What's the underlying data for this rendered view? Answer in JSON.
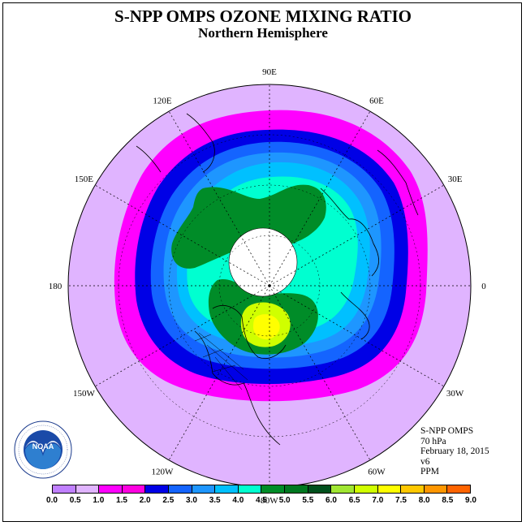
{
  "title": "S-NPP OMPS OZONE MIXING RATIO",
  "subtitle": "Northern Hemisphere",
  "longitude_labels": [
    {
      "text": "90E",
      "lon": 90
    },
    {
      "text": "60E",
      "lon": 60
    },
    {
      "text": "30E",
      "lon": 30
    },
    {
      "text": "0",
      "lon": 0
    },
    {
      "text": "30W",
      "lon": -30
    },
    {
      "text": "60W",
      "lon": -60
    },
    {
      "text": "90W",
      "lon": -90
    },
    {
      "text": "120W",
      "lon": -120
    },
    {
      "text": "150W",
      "lon": -150
    },
    {
      "text": "180",
      "lon": 180
    },
    {
      "text": "150E",
      "lon": 150
    },
    {
      "text": "120E",
      "lon": 120
    }
  ],
  "info": {
    "instrument": "S-NPP OMPS",
    "level": "70 hPa",
    "date": "February 18, 2015",
    "version": "v6",
    "units": "PPM"
  },
  "colorbar": {
    "ticks": [
      "0.0",
      "0.5",
      "1.0",
      "1.5",
      "2.0",
      "2.5",
      "3.0",
      "3.5",
      "4.0",
      "4.5",
      "5.0",
      "5.5",
      "6.0",
      "6.5",
      "7.0",
      "7.5",
      "8.0",
      "8.5",
      "9.0"
    ],
    "colors": [
      "#c080ff",
      "#e0b4ff",
      "#ff00ff",
      "#ff00e0",
      "#0000e6",
      "#1464ff",
      "#1e96ff",
      "#00c0ff",
      "#00ffd0",
      "#008c28",
      "#007820",
      "#00501c",
      "#a0e632",
      "#d0ff00",
      "#ffff00",
      "#ffc800",
      "#ff9600",
      "#ff6400",
      "#ff0000",
      "#8c4628"
    ]
  },
  "logo": {
    "text": "NOAA",
    "ring_text": "NATIONAL OCEANIC AND ATMOSPHERIC ADMINISTRATION · U.S. DEPARTMENT OF COMMERCE"
  },
  "colors": {
    "background_field": "#e0b4ff",
    "polar_night": "#ffffff"
  }
}
